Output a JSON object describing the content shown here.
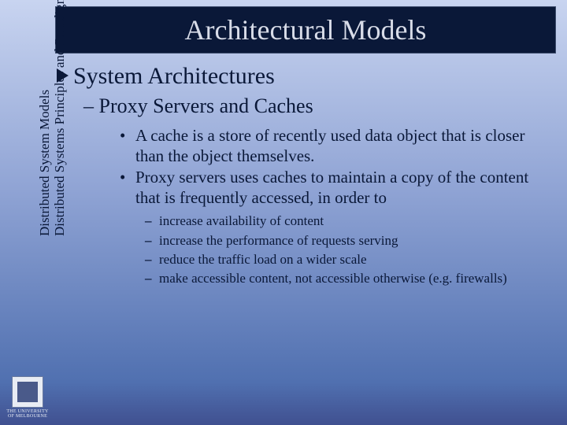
{
  "colors": {
    "bg_top": "#c8d4f0",
    "bg_bot": "#405090",
    "title_bg": "#0a1838",
    "title_fg": "#d8dce8",
    "text": "#0a1838"
  },
  "title": "Architectural Models",
  "sidebar": {
    "line1": "Distributed System Models",
    "line2": "Distributed Systems Principles and Paradigms"
  },
  "content": {
    "heading": "System Architectures",
    "subheading": "– Proxy Servers and Caches",
    "bullets": [
      "A cache is a store of recently used data object that is closer than the object themselves.",
      "Proxy servers uses caches to maintain a copy of the content that is frequently accessed, in order to"
    ],
    "subbullets": [
      "increase availability of content",
      "increase the performance of  requests  serving",
      "reduce the traffic load on a wider scale",
      "make accessible content, not accessible otherwise (e.g. firewalls)"
    ]
  },
  "logo": {
    "label": "THE UNIVERSITY OF MELBOURNE"
  }
}
